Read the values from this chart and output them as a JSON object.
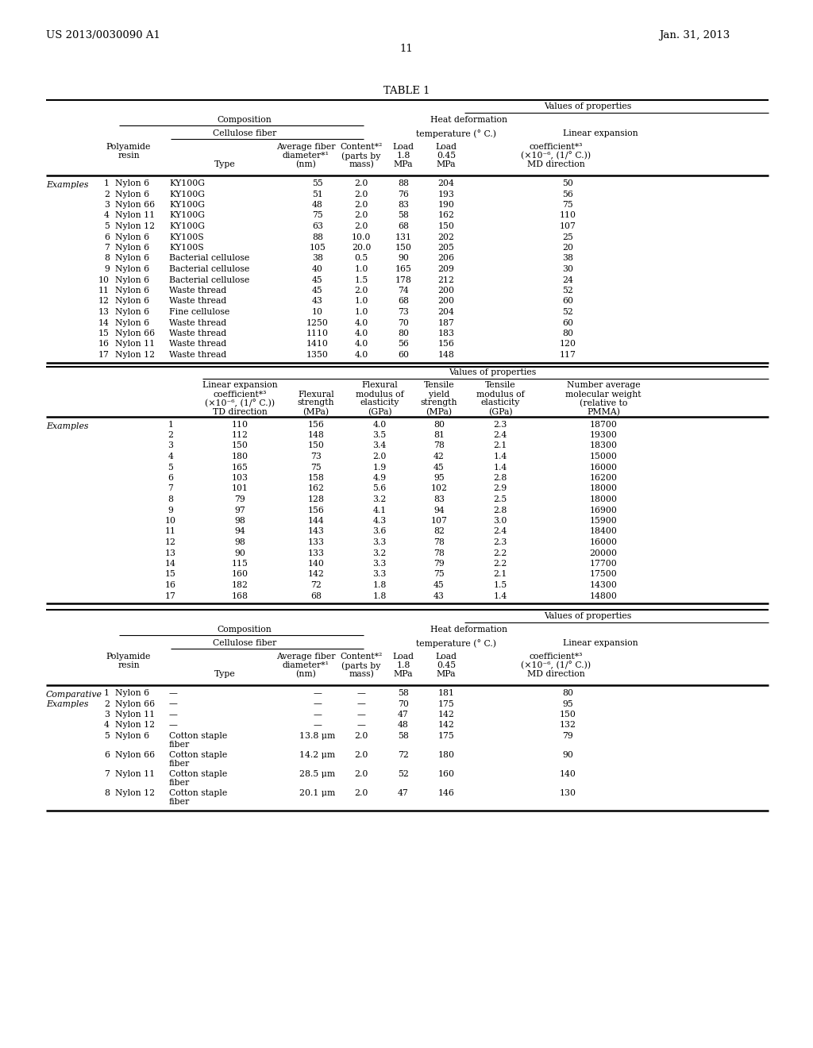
{
  "patent_number": "US 2013/0030090 A1",
  "date": "Jan. 31, 2013",
  "page_number": "11",
  "table_title": "TABLE 1",
  "background_color": "#ffffff",
  "table1_rows": [
    [
      "1",
      "Nylon 6",
      "KY100G",
      "55",
      "2.0",
      "88",
      "204",
      "50"
    ],
    [
      "2",
      "Nylon 6",
      "KY100G",
      "51",
      "2.0",
      "76",
      "193",
      "56"
    ],
    [
      "3",
      "Nylon 66",
      "KY100G",
      "48",
      "2.0",
      "83",
      "190",
      "75"
    ],
    [
      "4",
      "Nylon 11",
      "KY100G",
      "75",
      "2.0",
      "58",
      "162",
      "110"
    ],
    [
      "5",
      "Nylon 12",
      "KY100G",
      "63",
      "2.0",
      "68",
      "150",
      "107"
    ],
    [
      "6",
      "Nylon 6",
      "KY100S",
      "88",
      "10.0",
      "131",
      "202",
      "25"
    ],
    [
      "7",
      "Nylon 6",
      "KY100S",
      "105",
      "20.0",
      "150",
      "205",
      "20"
    ],
    [
      "8",
      "Nylon 6",
      "Bacterial cellulose",
      "38",
      "0.5",
      "90",
      "206",
      "38"
    ],
    [
      "9",
      "Nylon 6",
      "Bacterial cellulose",
      "40",
      "1.0",
      "165",
      "209",
      "30"
    ],
    [
      "10",
      "Nylon 6",
      "Bacterial cellulose",
      "45",
      "1.5",
      "178",
      "212",
      "24"
    ],
    [
      "11",
      "Nylon 6",
      "Waste thread",
      "45",
      "2.0",
      "74",
      "200",
      "52"
    ],
    [
      "12",
      "Nylon 6",
      "Waste thread",
      "43",
      "1.0",
      "68",
      "200",
      "60"
    ],
    [
      "13",
      "Nylon 6",
      "Fine cellulose",
      "10",
      "1.0",
      "73",
      "204",
      "52"
    ],
    [
      "14",
      "Nylon 6",
      "Waste thread",
      "1250",
      "4.0",
      "70",
      "187",
      "60"
    ],
    [
      "15",
      "Nylon 66",
      "Waste thread",
      "1110",
      "4.0",
      "80",
      "183",
      "80"
    ],
    [
      "16",
      "Nylon 11",
      "Waste thread",
      "1410",
      "4.0",
      "56",
      "156",
      "120"
    ],
    [
      "17",
      "Nylon 12",
      "Waste thread",
      "1350",
      "4.0",
      "60",
      "148",
      "117"
    ]
  ],
  "table2_rows": [
    [
      "1",
      "110",
      "156",
      "4.0",
      "80",
      "2.3",
      "18700"
    ],
    [
      "2",
      "112",
      "148",
      "3.5",
      "81",
      "2.4",
      "19300"
    ],
    [
      "3",
      "150",
      "150",
      "3.4",
      "78",
      "2.1",
      "18300"
    ],
    [
      "4",
      "180",
      "73",
      "2.0",
      "42",
      "1.4",
      "15000"
    ],
    [
      "5",
      "165",
      "75",
      "1.9",
      "45",
      "1.4",
      "16000"
    ],
    [
      "6",
      "103",
      "158",
      "4.9",
      "95",
      "2.8",
      "16200"
    ],
    [
      "7",
      "101",
      "162",
      "5.6",
      "102",
      "2.9",
      "18000"
    ],
    [
      "8",
      "79",
      "128",
      "3.2",
      "83",
      "2.5",
      "18000"
    ],
    [
      "9",
      "97",
      "156",
      "4.1",
      "94",
      "2.8",
      "16900"
    ],
    [
      "10",
      "98",
      "144",
      "4.3",
      "107",
      "3.0",
      "15900"
    ],
    [
      "11",
      "94",
      "143",
      "3.6",
      "82",
      "2.4",
      "18400"
    ],
    [
      "12",
      "98",
      "133",
      "3.3",
      "78",
      "2.3",
      "16000"
    ],
    [
      "13",
      "90",
      "133",
      "3.2",
      "78",
      "2.2",
      "20000"
    ],
    [
      "14",
      "115",
      "140",
      "3.3",
      "79",
      "2.2",
      "17700"
    ],
    [
      "15",
      "160",
      "142",
      "3.3",
      "75",
      "2.1",
      "17500"
    ],
    [
      "16",
      "182",
      "72",
      "1.8",
      "45",
      "1.5",
      "14300"
    ],
    [
      "17",
      "168",
      "68",
      "1.8",
      "43",
      "1.4",
      "14800"
    ]
  ],
  "table3_rows": [
    [
      "1",
      "Nylon 6",
      "—",
      "—",
      "—",
      "58",
      "181",
      "80"
    ],
    [
      "2",
      "Nylon 66",
      "—",
      "—",
      "—",
      "70",
      "175",
      "95"
    ],
    [
      "3",
      "Nylon 11",
      "—",
      "—",
      "—",
      "47",
      "142",
      "150"
    ],
    [
      "4",
      "Nylon 12",
      "—",
      "—",
      "—",
      "48",
      "142",
      "132"
    ],
    [
      "5",
      "Nylon 6",
      "Cotton staple\nfiber",
      "13.8 μm",
      "2.0",
      "58",
      "175",
      "79"
    ],
    [
      "6",
      "Nylon 66",
      "Cotton staple\nfiber",
      "14.2 μm",
      "2.0",
      "72",
      "180",
      "90"
    ],
    [
      "7",
      "Nylon 11",
      "Cotton staple\nfiber",
      "28.5 μm",
      "2.0",
      "52",
      "160",
      "140"
    ],
    [
      "8",
      "Nylon 12",
      "Cotton staple\nfiber",
      "20.1 μm",
      "2.0",
      "47",
      "146",
      "130"
    ]
  ]
}
